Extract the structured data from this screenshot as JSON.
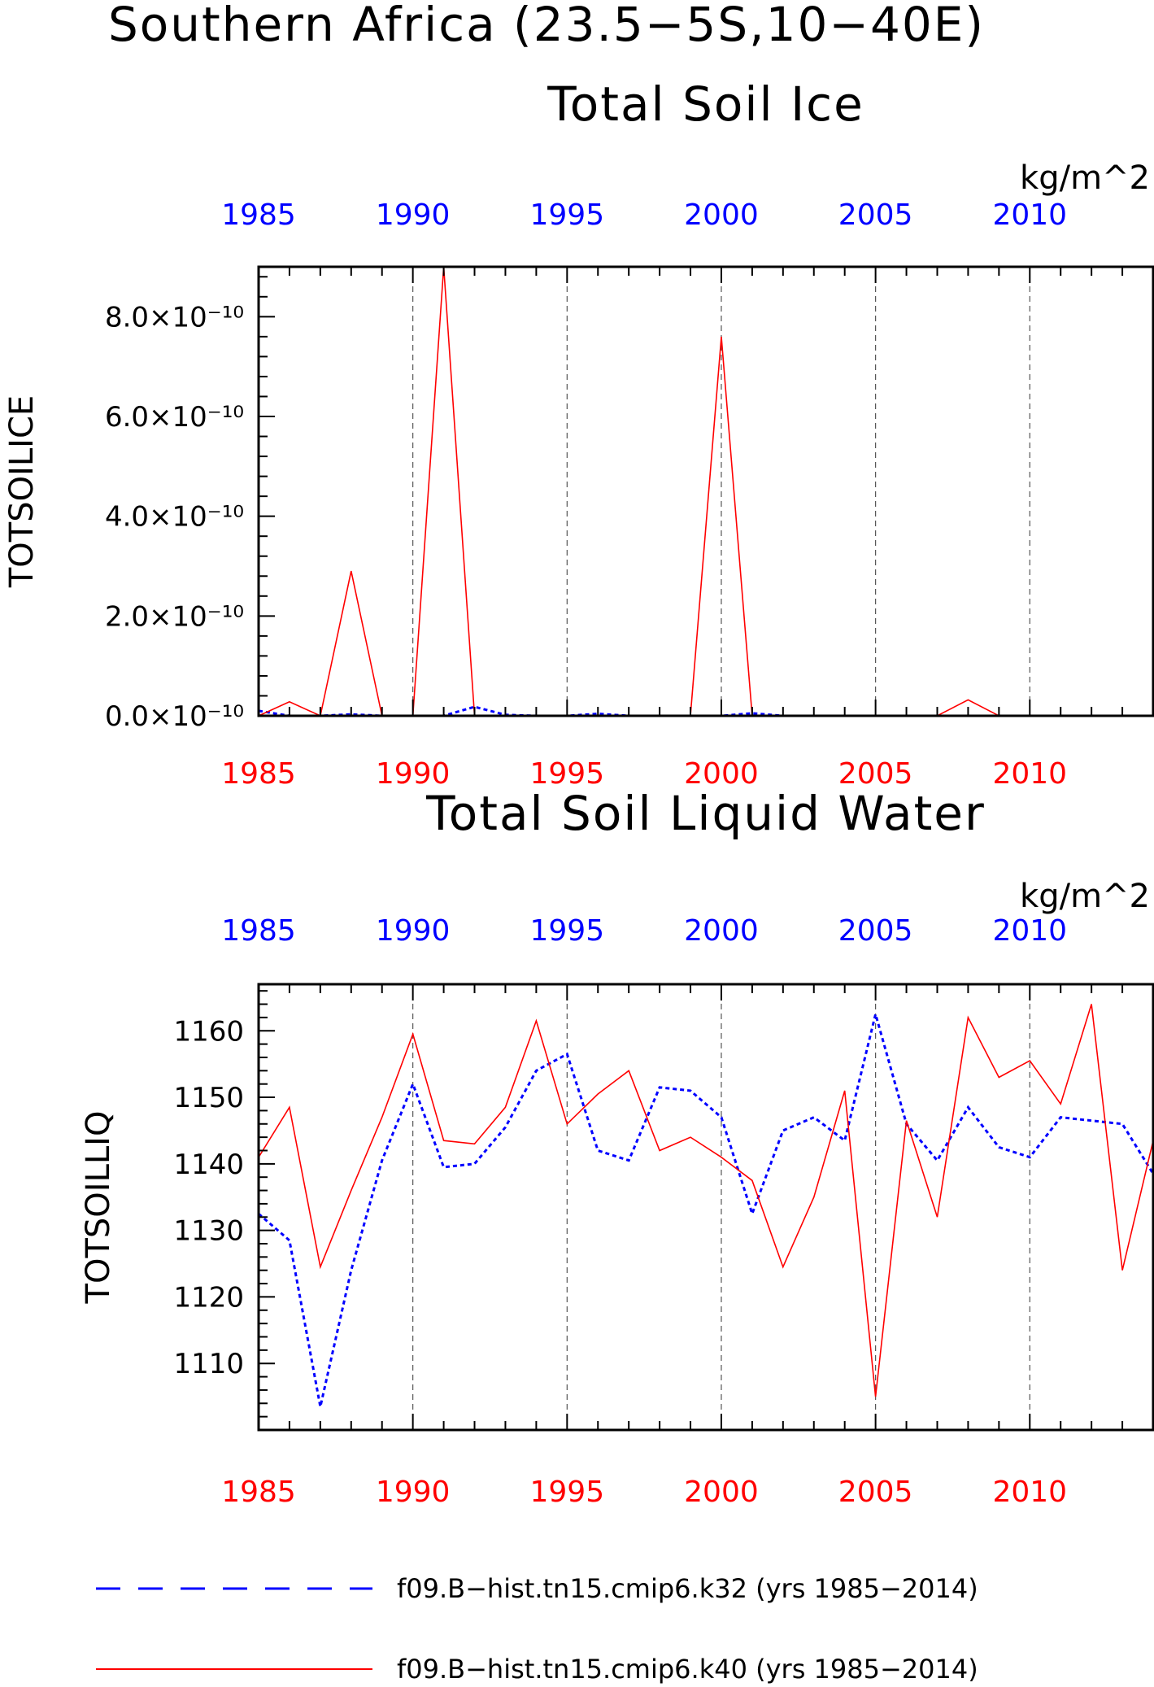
{
  "figure": {
    "title": "Southern Africa (23.5−5S,10−40E)",
    "legend": [
      {
        "label": "f09.B−hist.tn15.cmip6.k32 (yrs 1985−2014)",
        "color": "#0000ff",
        "style": "dashed"
      },
      {
        "label": "f09.B−hist.tn15.cmip6.k40 (yrs 1985−2014)",
        "color": "#ff0000",
        "style": "solid"
      }
    ]
  },
  "chart_data": [
    {
      "type": "line",
      "title": "Total Soil Ice",
      "units": "kg/m^2",
      "ylabel": "TOTSOILICE",
      "xlim": [
        1985,
        2014
      ],
      "ylim": [
        0,
        9e-10
      ],
      "x_ticks": [
        1985,
        1990,
        1995,
        2000,
        2005,
        2010
      ],
      "x_tick_labels": [
        "1985",
        "1990",
        "1995",
        "2000",
        "2005",
        "2010"
      ],
      "y_ticks": [
        0,
        2e-10,
        4e-10,
        6e-10,
        8e-10
      ],
      "y_tick_labels": [
        "0.0×10⁻¹⁰",
        "2.0×10⁻¹⁰",
        "4.0×10⁻¹⁰",
        "6.0×10⁻¹⁰",
        "8.0×10⁻¹⁰"
      ],
      "grid": "vertical dashed at major x ticks",
      "x": [
        1985,
        1986,
        1987,
        1988,
        1989,
        1990,
        1991,
        1992,
        1993,
        1994,
        1995,
        1996,
        1997,
        1998,
        1999,
        2000,
        2001,
        2002,
        2003,
        2004,
        2005,
        2006,
        2007,
        2008,
        2009,
        2010,
        2011,
        2012,
        2013,
        2014
      ],
      "series": [
        {
          "name": "f09.B−hist.tn15.cmip6.k32",
          "color": "#0000ff",
          "dash": "dotted",
          "values": [
            1e-11,
            0,
            0,
            3e-12,
            0,
            0,
            0,
            1.8e-11,
            2e-12,
            0,
            0,
            4e-12,
            0,
            0,
            0,
            0,
            5e-12,
            0,
            0,
            0,
            0,
            0,
            0,
            0,
            0,
            0,
            0,
            0,
            0,
            0
          ]
        },
        {
          "name": "f09.B−hist.tn15.cmip6.k40",
          "color": "#ff0000",
          "dash": "solid",
          "values": [
            0,
            2.8e-11,
            0,
            2.9e-10,
            0,
            0,
            9e-10,
            0,
            0,
            0,
            0,
            0,
            0,
            0,
            0,
            7.6e-10,
            0,
            0,
            0,
            0,
            0,
            0,
            0,
            3.2e-11,
            0,
            0,
            0,
            0,
            0,
            0
          ]
        }
      ]
    },
    {
      "type": "line",
      "title": "Total Soil Liquid Water",
      "units": "kg/m^2",
      "ylabel": "TOTSOILLIQ",
      "xlim": [
        1985,
        2014
      ],
      "ylim": [
        1100,
        1167
      ],
      "x_ticks": [
        1985,
        1990,
        1995,
        2000,
        2005,
        2010
      ],
      "x_tick_labels": [
        "1985",
        "1990",
        "1995",
        "2000",
        "2005",
        "2010"
      ],
      "y_ticks": [
        1110,
        1120,
        1130,
        1140,
        1150,
        1160
      ],
      "y_tick_labels": [
        "1110",
        "1120",
        "1130",
        "1140",
        "1150",
        "1160"
      ],
      "grid": "vertical dashed at major x ticks",
      "x": [
        1985,
        1986,
        1987,
        1988,
        1989,
        1990,
        1991,
        1992,
        1993,
        1994,
        1995,
        1996,
        1997,
        1998,
        1999,
        2000,
        2001,
        2002,
        2003,
        2004,
        2005,
        2006,
        2007,
        2008,
        2009,
        2010,
        2011,
        2012,
        2013,
        2014
      ],
      "series": [
        {
          "name": "f09.B−hist.tn15.cmip6.k32",
          "color": "#0000ff",
          "dash": "dotted",
          "values": [
            1132.5,
            1128.5,
            1103.5,
            1124.0,
            1140.5,
            1152.0,
            1139.5,
            1140.0,
            1145.5,
            1154.0,
            1156.5,
            1142.0,
            1140.5,
            1151.5,
            1151.0,
            1147.0,
            1132.5,
            1145.0,
            1147.0,
            1143.5,
            1162.5,
            1146.0,
            1140.5,
            1148.5,
            1142.5,
            1141.0,
            1147.0,
            1146.5,
            1146.0,
            1138.5
          ]
        },
        {
          "name": "f09.B−hist.tn15.cmip6.k40",
          "color": "#ff0000",
          "dash": "solid",
          "values": [
            1141.0,
            1148.5,
            1124.5,
            1136.0,
            1147.0,
            1159.5,
            1143.5,
            1143.0,
            1148.5,
            1161.5,
            1146.0,
            1150.5,
            1154.0,
            1142.0,
            1144.0,
            1141.0,
            1137.5,
            1124.5,
            1135.0,
            1151.0,
            1105.0,
            1146.5,
            1132.0,
            1162.0,
            1153.0,
            1155.5,
            1149.0,
            1164.0,
            1124.0,
            1143.5
          ]
        }
      ]
    }
  ]
}
